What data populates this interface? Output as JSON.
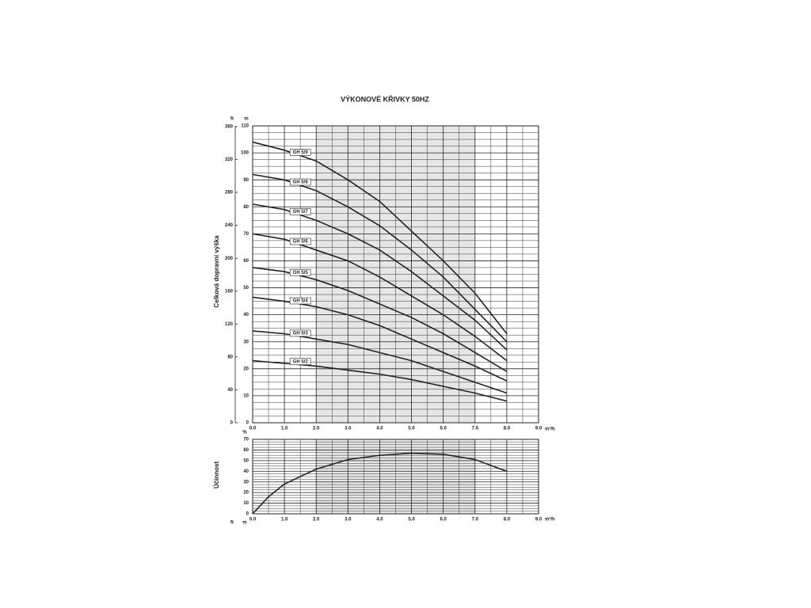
{
  "chart_data": [
    {
      "type": "line",
      "title": "VÝKONOVÉ KŘIVKY 50HZ",
      "ylabel": "Celková dopravní výška",
      "y_unit": "m",
      "y2_unit": "ft",
      "x_unit": "m³/h",
      "x": [
        0,
        1,
        2,
        3,
        4,
        5,
        6,
        7,
        8
      ],
      "xlim": [
        0,
        9
      ],
      "xticks": [
        {
          "value": 0,
          "label": "0.0"
        },
        {
          "value": 1,
          "label": "1.0"
        },
        {
          "value": 2,
          "label": "2.0"
        },
        {
          "value": 3,
          "label": "3.0"
        },
        {
          "value": 4,
          "label": "4.0"
        },
        {
          "value": 5,
          "label": "5.0"
        },
        {
          "value": 6,
          "label": "6.0"
        },
        {
          "value": 7,
          "label": "7.0"
        },
        {
          "value": 8,
          "label": "8.0"
        },
        {
          "value": 9,
          "label": "9.0"
        }
      ],
      "ylim": [
        0,
        110
      ],
      "yticks": [
        0,
        10,
        20,
        30,
        40,
        50,
        60,
        70,
        80,
        90,
        100,
        110
      ],
      "y2lim": [
        0,
        360.9
      ],
      "y2ticks": [
        0,
        40,
        80,
        120,
        160,
        200,
        240,
        280,
        320,
        360
      ],
      "highlight_x": [
        2,
        7
      ],
      "grid": true,
      "series": [
        {
          "name": "GH 5/9",
          "color": "#222222",
          "values": [
            104,
            101,
            97,
            90,
            82,
            71,
            60,
            48,
            33
          ]
        },
        {
          "name": "GH 5/8",
          "color": "#222222",
          "values": [
            92,
            90,
            86,
            80,
            73,
            64,
            54,
            42,
            30
          ]
        },
        {
          "name": "GH 5/7",
          "color": "#222222",
          "values": [
            81,
            79,
            75,
            70,
            64,
            56,
            47,
            38,
            27
          ]
        },
        {
          "name": "GH 5/6",
          "color": "#222222",
          "values": [
            70,
            68,
            64,
            60,
            54,
            47,
            40,
            32,
            23
          ]
        },
        {
          "name": "GH 5/5",
          "color": "#222222",
          "values": [
            57.5,
            56,
            53,
            49,
            44,
            39,
            33,
            26,
            19
          ]
        },
        {
          "name": "GH 5/4",
          "color": "#222222",
          "values": [
            46.5,
            45,
            43,
            40,
            36,
            31,
            26,
            21,
            15.5
          ]
        },
        {
          "name": "GH 5/3",
          "color": "#222222",
          "values": [
            34,
            33,
            31,
            29,
            26,
            23,
            19,
            15,
            11
          ]
        },
        {
          "name": "GH 5/2",
          "color": "#222222",
          "values": [
            23,
            22,
            21,
            19.5,
            18,
            16,
            13.5,
            11,
            8
          ]
        }
      ]
    },
    {
      "type": "line",
      "ylabel": "Účinnost",
      "y_unit": "%",
      "x_unit": "m³/h",
      "corner_labels": [
        "ft",
        "m"
      ],
      "x": [
        0,
        0.5,
        1,
        2,
        3,
        4,
        5,
        6,
        7,
        8
      ],
      "xlim": [
        0,
        9
      ],
      "xticks": [
        {
          "value": 0,
          "label": "0.0"
        },
        {
          "value": 1,
          "label": "1.0"
        },
        {
          "value": 2,
          "label": "2.0"
        },
        {
          "value": 3,
          "label": "3.0"
        },
        {
          "value": 4,
          "label": "4.0"
        },
        {
          "value": 5,
          "label": "5.0"
        },
        {
          "value": 6,
          "label": "6.0"
        },
        {
          "value": 7,
          "label": "7.0"
        },
        {
          "value": 8,
          "label": "8.0"
        },
        {
          "value": 9,
          "label": "9.0"
        }
      ],
      "ylim": [
        0,
        70
      ],
      "yticks": [
        0,
        10,
        20,
        30,
        40,
        50,
        60,
        70
      ],
      "highlight_x": [
        2,
        7
      ],
      "grid": true,
      "series": [
        {
          "color": "#222222",
          "values": [
            0,
            16,
            28,
            42,
            51,
            55,
            57,
            56,
            51,
            40
          ]
        }
      ]
    }
  ]
}
